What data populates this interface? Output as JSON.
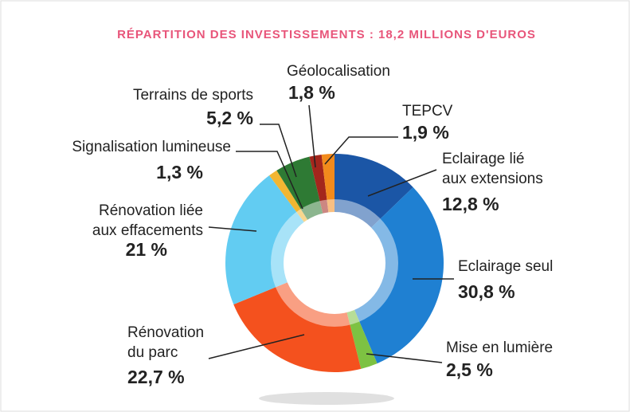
{
  "chart_data": {
    "type": "donut",
    "title": "RÉPARTITION DES INVESTISSEMENTS :  18,2 MILLIONS D'EUROS",
    "categories": [
      [
        "Eclairage lié",
        "aux extensions"
      ],
      [
        "Eclairage seul"
      ],
      [
        "Mise en lumière"
      ],
      [
        "Rénovation",
        "du parc"
      ],
      [
        "Rénovation liée",
        "aux effacements"
      ],
      [
        "Signalisation lumineuse"
      ],
      [
        "Terrains de sports"
      ],
      [
        "Géolocalisation"
      ],
      [
        "TEPCV"
      ]
    ],
    "values": [
      12.8,
      30.8,
      2.5,
      22.7,
      21,
      1.3,
      5.2,
      1.8,
      1.9
    ],
    "value_labels": [
      "12,8 %",
      "30,8 %",
      "2,5 %",
      "22,7 %",
      "21 %",
      "1,3 %",
      "5,2 %",
      "1,8 %",
      "1,9 %"
    ],
    "colors": [
      "#1b56a6",
      "#1f80d2",
      "#7dc242",
      "#f4511e",
      "#62ccf2",
      "#f2b632",
      "#2e7a34",
      "#a3261c",
      "#f28a1c"
    ]
  }
}
